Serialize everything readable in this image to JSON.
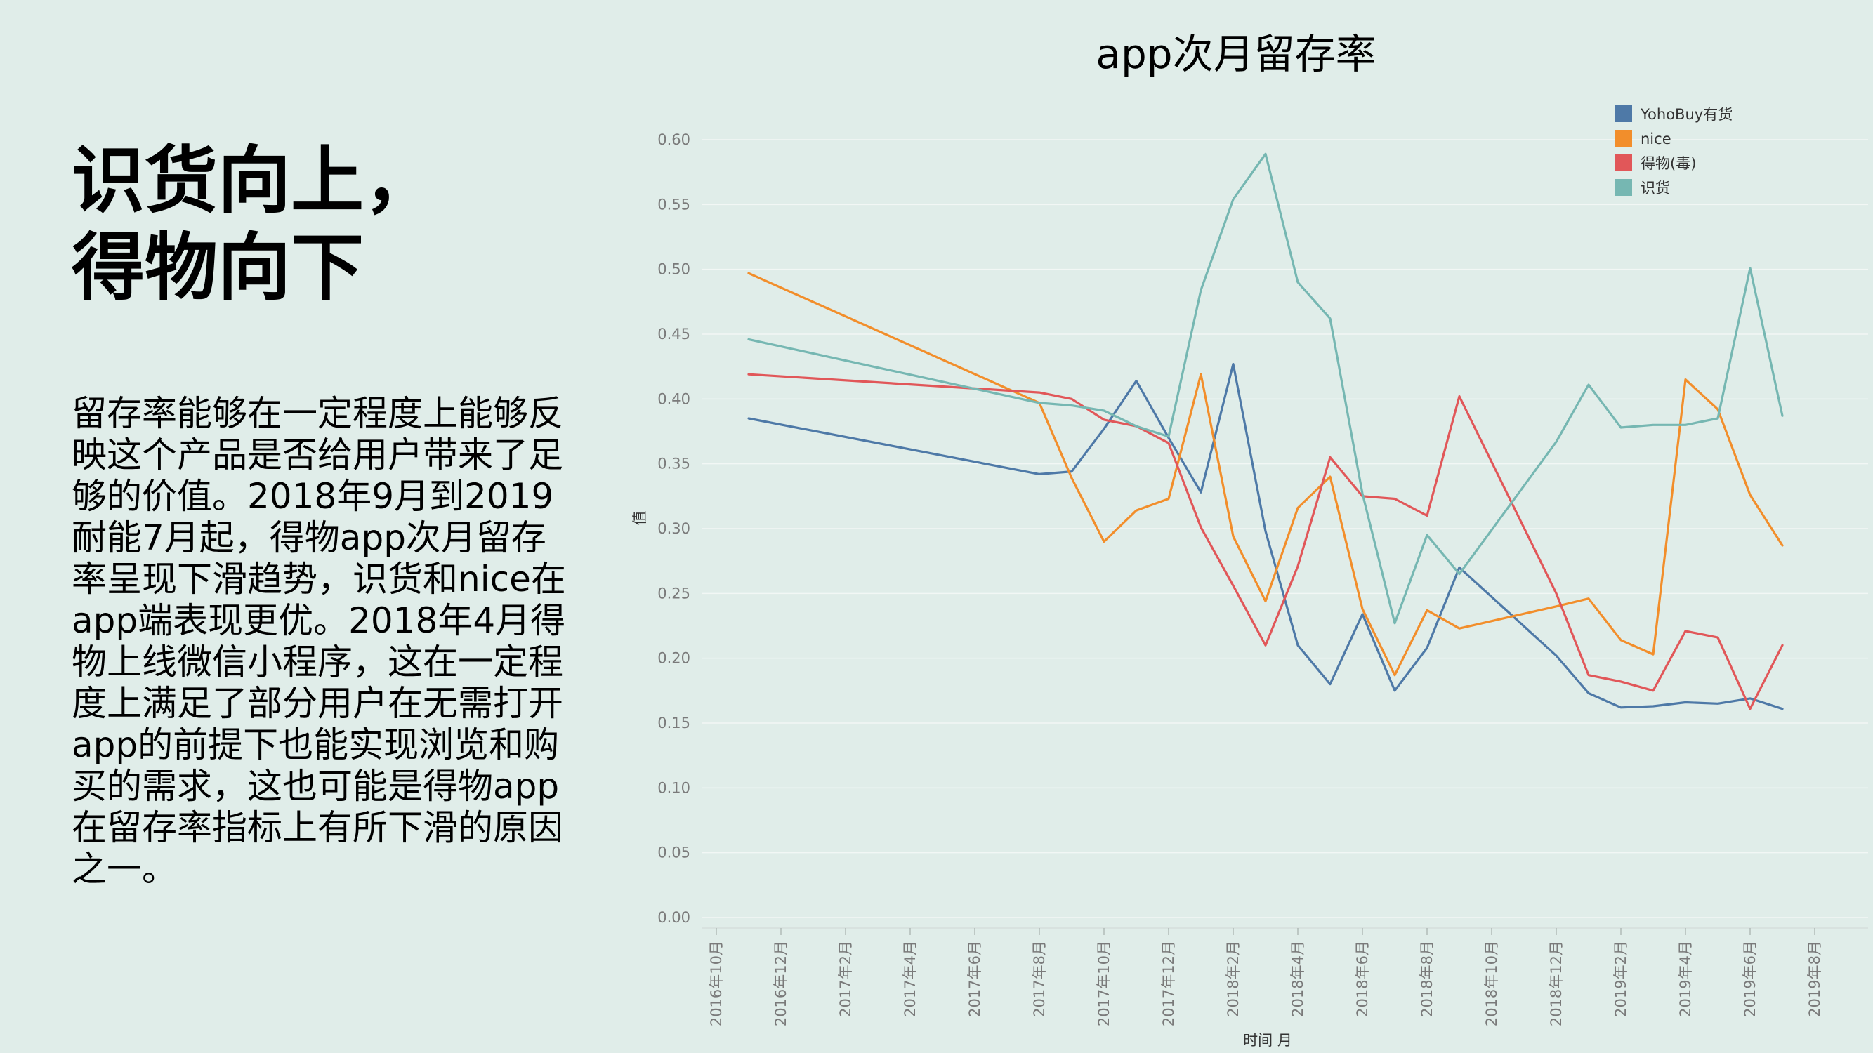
{
  "slide": {
    "heading_lines": [
      "识货向上，",
      "得物向下"
    ],
    "body_lines": [
      "留存率能够在一定程度上能够反",
      "映这个产品是否给用户带来了足",
      "够的价值。2018年9月到2019",
      "耐能7月起，得物app次月留存",
      "率呈现下滑趋势，识货和nice在",
      "app端表现更优。2018年4月得",
      "物上线微信小程序，这在一定程",
      "度上满足了部分用户在无需打开",
      "app的前提下也能实现浏览和购",
      "买的需求，这也可能是得物app",
      "在留存率指标上有所下滑的原因",
      "之一。"
    ]
  },
  "chart_data": {
    "type": "line",
    "title": "app次月留存率",
    "xlabel": "时间 月",
    "ylabel": "值",
    "ylim": [
      0,
      0.6
    ],
    "y_ticks": [
      "0.00",
      "0.05",
      "0.10",
      "0.15",
      "0.20",
      "0.25",
      "0.30",
      "0.35",
      "0.40",
      "0.45",
      "0.50",
      "0.55",
      "0.60"
    ],
    "x_ticks": [
      "2016年10月",
      "2016年12月",
      "2017年2月",
      "2017年4月",
      "2017年6月",
      "2017年8月",
      "2017年10月",
      "2017年12月",
      "2018年2月",
      "2018年4月",
      "2018年6月",
      "2018年8月",
      "2018年10月",
      "2018年12月",
      "2019年2月",
      "2019年4月",
      "2019年6月",
      "2019年8月"
    ],
    "grid": true,
    "legend_position": "top-right",
    "series": [
      {
        "name": "YohoBuy有货",
        "color": "#4e79a7",
        "x": [
          "2016-11",
          "2017-08",
          "2017-09",
          "2017-10",
          "2017-11",
          "2017-12",
          "2018-01",
          "2018-02",
          "2018-03",
          "2018-04",
          "2018-05",
          "2018-06",
          "2018-07",
          "2018-08",
          "2018-09",
          "2018-12",
          "2019-01",
          "2019-02",
          "2019-03",
          "2019-04",
          "2019-05",
          "2019-06",
          "2019-07"
        ],
        "values": [
          0.385,
          0.342,
          0.344,
          0.377,
          0.414,
          0.37,
          0.328,
          0.427,
          0.298,
          0.21,
          0.18,
          0.234,
          0.175,
          0.208,
          0.27,
          0.202,
          0.173,
          0.162,
          0.163,
          0.166,
          0.165,
          0.169,
          0.161
        ]
      },
      {
        "name": "nice",
        "color": "#f28e2b",
        "x": [
          "2016-11",
          "2017-08",
          "2017-09",
          "2017-10",
          "2017-11",
          "2017-12",
          "2018-01",
          "2018-02",
          "2018-03",
          "2018-04",
          "2018-05",
          "2018-06",
          "2018-07",
          "2018-08",
          "2018-09",
          "2018-12",
          "2019-01",
          "2019-02",
          "2019-03",
          "2019-04",
          "2019-05",
          "2019-06",
          "2019-07"
        ],
        "values": [
          0.497,
          0.397,
          0.339,
          0.29,
          0.314,
          0.323,
          0.419,
          0.294,
          0.244,
          0.316,
          0.34,
          0.238,
          0.187,
          0.237,
          0.223,
          0.24,
          0.246,
          0.214,
          0.203,
          0.415,
          0.392,
          0.326,
          0.287
        ]
      },
      {
        "name": "得物(毒)",
        "color": "#e15759",
        "x": [
          "2016-11",
          "2017-08",
          "2017-09",
          "2017-10",
          "2017-11",
          "2017-12",
          "2018-01",
          "2018-02",
          "2018-03",
          "2018-04",
          "2018-05",
          "2018-06",
          "2018-07",
          "2018-08",
          "2018-09",
          "2018-12",
          "2019-01",
          "2019-02",
          "2019-03",
          "2019-04",
          "2019-05",
          "2019-06",
          "2019-07"
        ],
        "values": [
          0.419,
          0.405,
          0.4,
          0.384,
          0.379,
          0.366,
          0.301,
          0.256,
          0.21,
          0.271,
          0.355,
          0.325,
          0.323,
          0.31,
          0.402,
          0.25,
          0.187,
          0.182,
          0.175,
          0.221,
          0.216,
          0.161,
          0.21
        ]
      },
      {
        "name": "识货",
        "color": "#76b7b2",
        "x": [
          "2016-11",
          "2017-08",
          "2017-09",
          "2017-10",
          "2017-11",
          "2017-12",
          "2018-01",
          "2018-02",
          "2018-03",
          "2018-04",
          "2018-05",
          "2018-06",
          "2018-07",
          "2018-08",
          "2018-09",
          "2018-12",
          "2019-01",
          "2019-02",
          "2019-03",
          "2019-04",
          "2019-05",
          "2019-06",
          "2019-07"
        ],
        "values": [
          0.446,
          0.397,
          0.395,
          0.391,
          0.379,
          0.371,
          0.484,
          0.554,
          0.589,
          0.49,
          0.462,
          0.327,
          0.227,
          0.295,
          0.265,
          0.367,
          0.411,
          0.378,
          0.38,
          0.38,
          0.385,
          0.501,
          0.387
        ]
      }
    ]
  }
}
